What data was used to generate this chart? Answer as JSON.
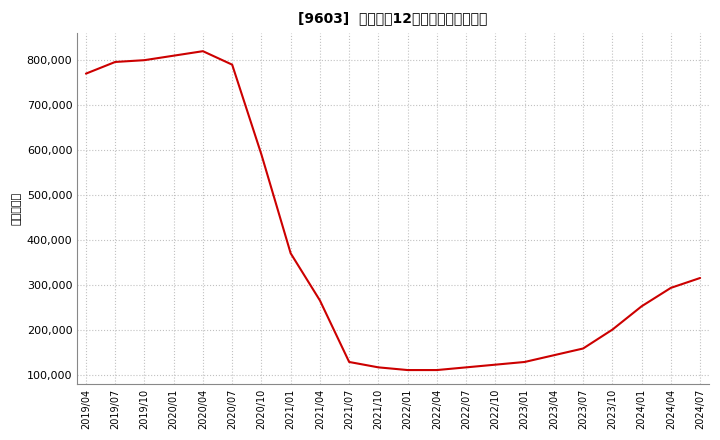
{
  "title": "[9603]  売上高の12か月移動合計の推移",
  "ylabel": "（百万円）",
  "line_color": "#cc0000",
  "background_color": "#ffffff",
  "plot_bg_color": "#ffffff",
  "grid_color": "#bbbbbb",
  "dates": [
    "2019/04",
    "2019/07",
    "2019/10",
    "2020/01",
    "2020/04",
    "2020/07",
    "2020/10",
    "2021/01",
    "2021/04",
    "2021/07",
    "2021/10",
    "2022/01",
    "2022/04",
    "2022/07",
    "2022/10",
    "2023/01",
    "2023/04",
    "2023/07",
    "2023/10",
    "2024/01",
    "2024/04",
    "2024/07"
  ],
  "values": [
    770000,
    796000,
    800000,
    810000,
    820000,
    790000,
    590000,
    370000,
    265000,
    128000,
    116000,
    110000,
    110000,
    116000,
    122000,
    128000,
    143000,
    158000,
    200000,
    252000,
    293000,
    315000
  ],
  "yticks": [
    100000,
    200000,
    300000,
    400000,
    500000,
    600000,
    700000,
    800000
  ],
  "ylim": [
    80000,
    860000
  ],
  "xticks": [
    "2019/04",
    "2019/07",
    "2019/10",
    "2020/01",
    "2020/04",
    "2020/07",
    "2020/10",
    "2021/01",
    "2021/04",
    "2021/07",
    "2021/10",
    "2022/01",
    "2022/04",
    "2022/07",
    "2022/10",
    "2023/01",
    "2023/04",
    "2023/07",
    "2023/10",
    "2024/01",
    "2024/04",
    "2024/07"
  ]
}
